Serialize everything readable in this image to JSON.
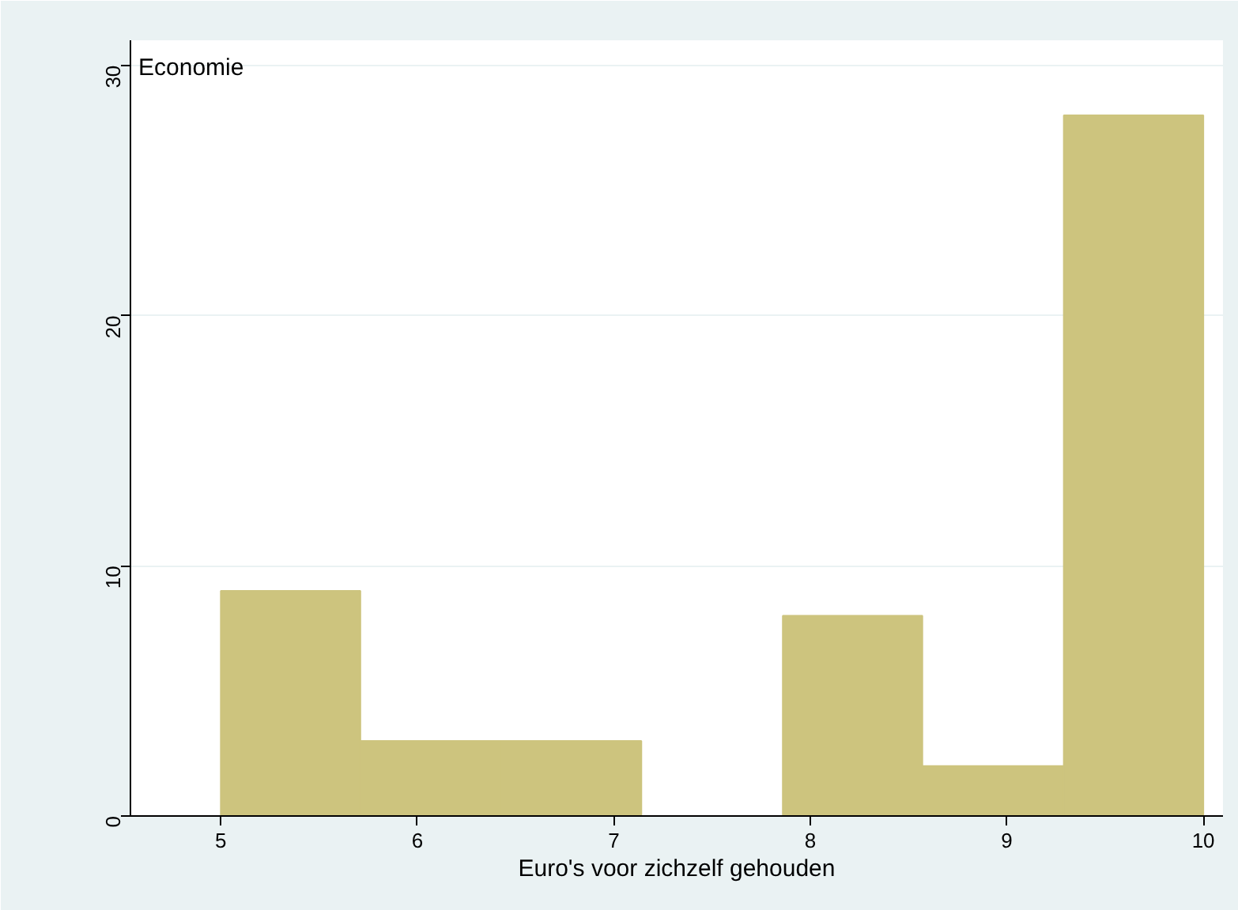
{
  "chart_data": {
    "type": "histogram",
    "bins": [
      5,
      5.71,
      6.43,
      7.14,
      7.86,
      8.57,
      9.29,
      10
    ],
    "values": [
      9,
      3,
      3,
      0,
      8,
      2,
      28
    ],
    "color": "#cdc47e",
    "xlabel": "Euro's voor zichzelf gehouden",
    "annotations": [
      "Economie"
    ],
    "xlim": [
      4.54,
      10.1
    ],
    "ylim": [
      0,
      31
    ],
    "xticks": [
      5,
      6,
      7,
      8,
      9,
      10
    ],
    "yticks": [
      0,
      10,
      20,
      30
    ],
    "grid": "y"
  }
}
